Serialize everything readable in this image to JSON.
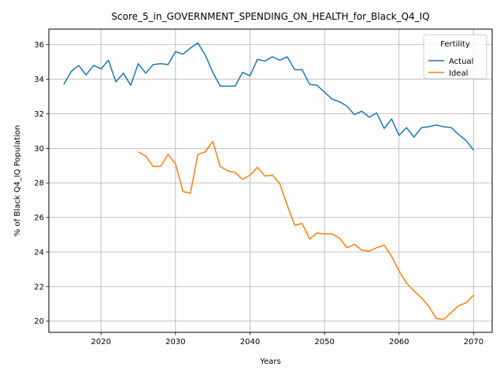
{
  "chart_data": {
    "type": "line",
    "title": "Score_5_in_GOVERNMENT_SPENDING_ON_HEALTH_for_Black_Q4_IQ",
    "xlabel": "Years",
    "ylabel": "% of Black Q4_IQ Population",
    "xlim": [
      2013,
      2072.5
    ],
    "ylim": [
      19.35,
      36.9
    ],
    "xticks": [
      2020,
      2030,
      2040,
      2050,
      2060,
      2070
    ],
    "yticks": [
      20,
      22,
      24,
      26,
      28,
      30,
      32,
      34,
      36
    ],
    "grid": true,
    "legend": {
      "title": "Fertility",
      "placement": "top-right"
    },
    "series": [
      {
        "name": "Actual",
        "color": "#1f77b4",
        "x": [
          2015,
          2016,
          2017,
          2018,
          2019,
          2020,
          2021,
          2022,
          2023,
          2024,
          2025,
          2026,
          2027,
          2028,
          2029,
          2030,
          2031,
          2032,
          2033,
          2034,
          2035,
          2036,
          2037,
          2038,
          2039,
          2040,
          2041,
          2042,
          2043,
          2044,
          2045,
          2046,
          2047,
          2048,
          2049,
          2050,
          2051,
          2052,
          2053,
          2054,
          2055,
          2056,
          2057,
          2058,
          2059,
          2060,
          2061,
          2062,
          2063,
          2064,
          2065,
          2066,
          2067,
          2068,
          2069,
          2070
        ],
        "y": [
          33.7,
          34.45,
          34.8,
          34.25,
          34.8,
          34.6,
          35.1,
          33.85,
          34.35,
          33.65,
          34.9,
          34.35,
          34.85,
          34.9,
          34.85,
          35.6,
          35.45,
          35.8,
          36.1,
          35.4,
          34.4,
          33.6,
          33.6,
          33.6,
          34.4,
          34.2,
          35.15,
          35.05,
          35.3,
          35.1,
          35.3,
          34.55,
          34.55,
          33.7,
          33.65,
          33.25,
          32.85,
          32.7,
          32.45,
          31.95,
          32.15,
          31.8,
          32.05,
          31.15,
          31.7,
          30.75,
          31.2,
          30.65,
          31.2,
          31.25,
          31.35,
          31.25,
          31.2,
          30.8,
          30.45,
          29.9
        ]
      },
      {
        "name": "Ideal",
        "color": "#ff7f0e",
        "x": [
          2025,
          2026,
          2027,
          2028,
          2029,
          2030,
          2031,
          2032,
          2033,
          2034,
          2035,
          2036,
          2037,
          2038,
          2039,
          2040,
          2041,
          2042,
          2043,
          2044,
          2045,
          2046,
          2047,
          2048,
          2049,
          2050,
          2051,
          2052,
          2053,
          2054,
          2055,
          2056,
          2057,
          2058,
          2059,
          2060,
          2061,
          2062,
          2063,
          2064,
          2065,
          2066,
          2067,
          2068,
          2069,
          2070
        ],
        "y": [
          29.8,
          29.55,
          28.95,
          28.95,
          29.65,
          29.1,
          27.5,
          27.4,
          29.65,
          29.8,
          30.4,
          28.95,
          28.7,
          28.6,
          28.2,
          28.45,
          28.9,
          28.4,
          28.45,
          27.95,
          26.7,
          25.55,
          25.65,
          24.75,
          25.1,
          25.05,
          25.05,
          24.8,
          24.25,
          24.45,
          24.1,
          24.05,
          24.25,
          24.4,
          23.75,
          22.9,
          22.2,
          21.75,
          21.35,
          20.85,
          20.15,
          20.1,
          20.5,
          20.9,
          21.05,
          21.5
        ]
      }
    ]
  }
}
